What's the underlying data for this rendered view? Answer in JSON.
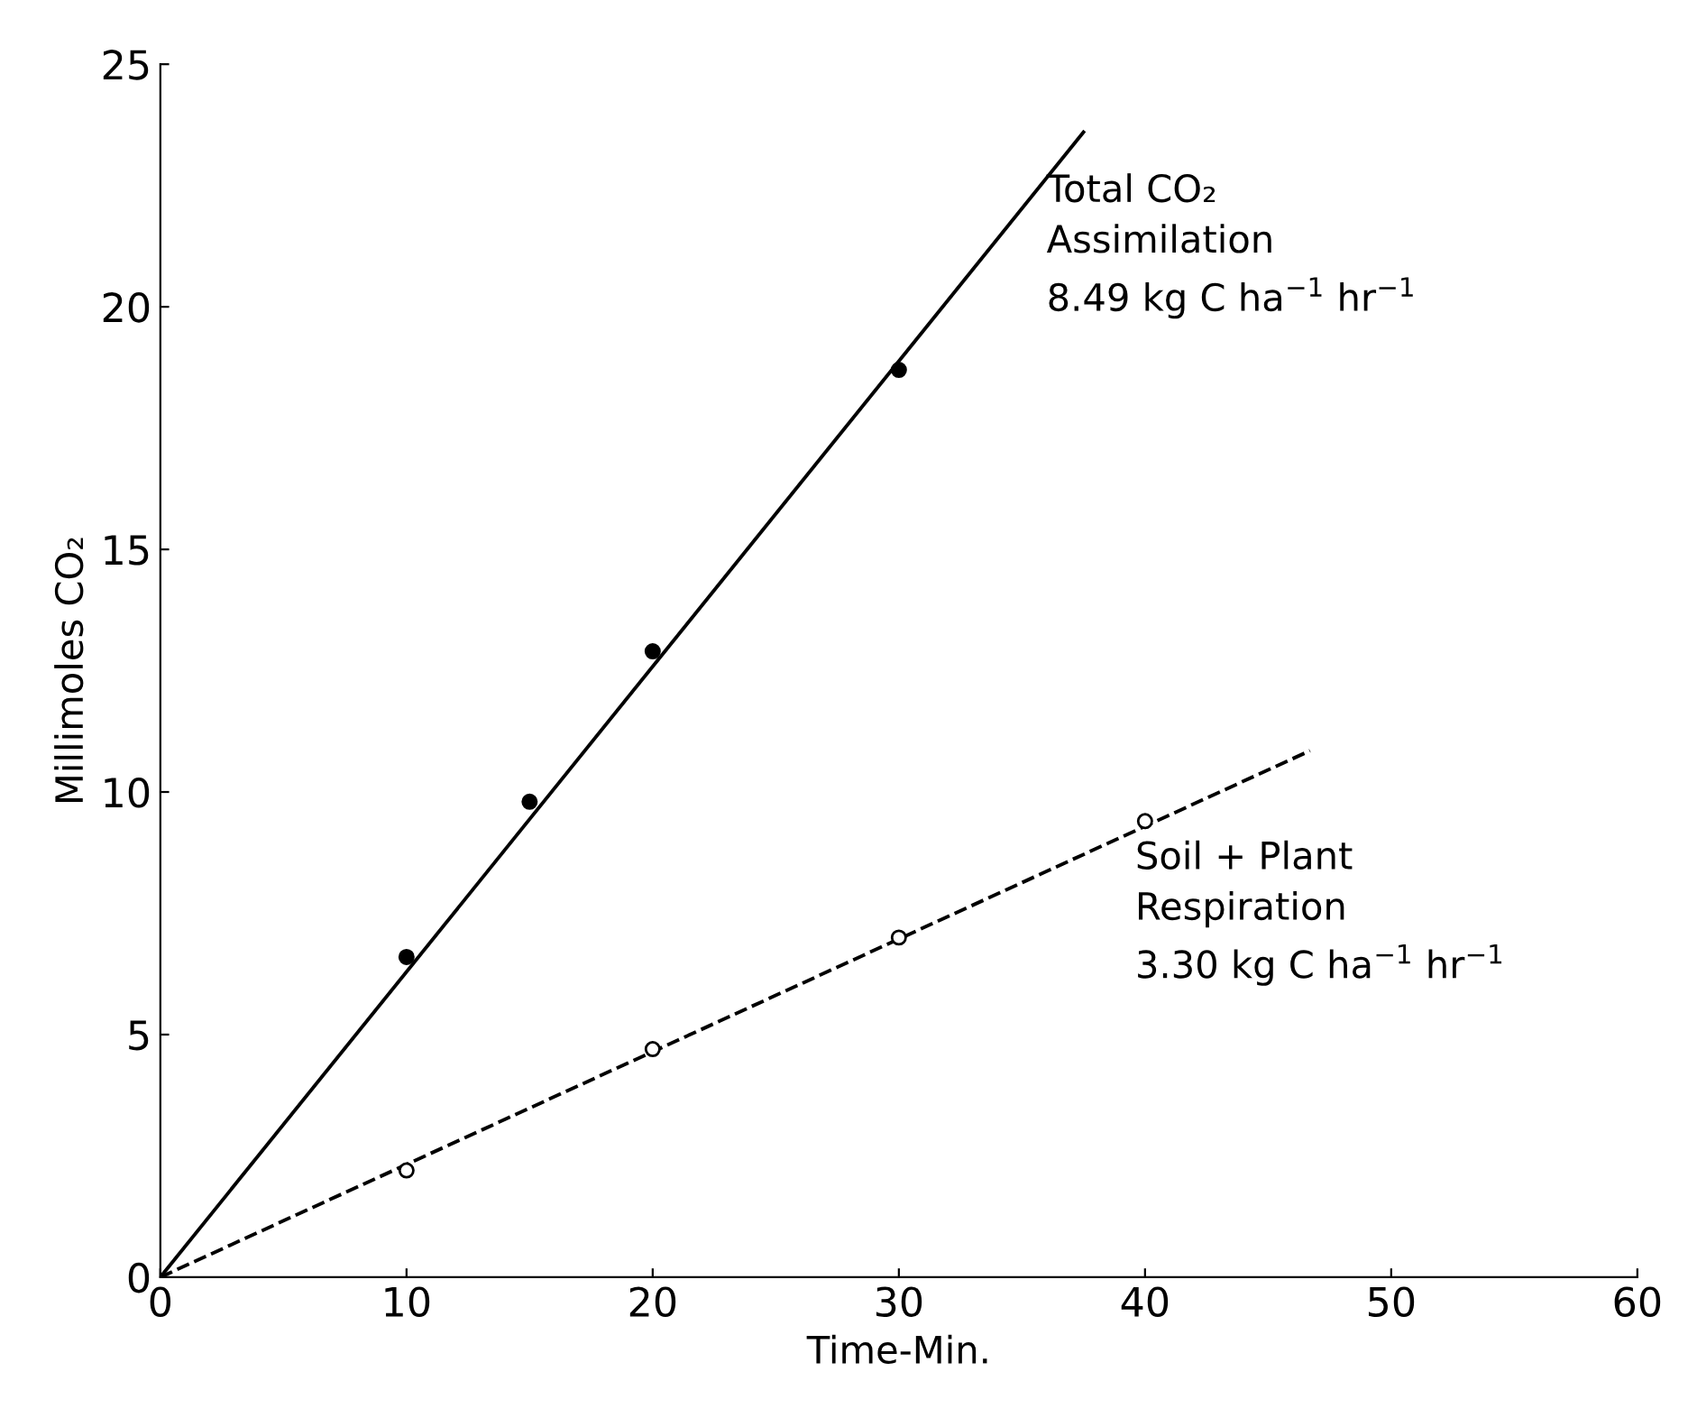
{
  "chart_data": {
    "type": "scatter",
    "xlabel": "Time-Min.",
    "ylabel": "Millimoles CO₂",
    "xlim": [
      0,
      60
    ],
    "ylim": [
      0,
      25
    ],
    "xticks": [
      0,
      10,
      20,
      30,
      40,
      50,
      60
    ],
    "yticks": [
      0,
      5,
      10,
      15,
      20,
      25
    ],
    "grid": false,
    "legend": false,
    "series": [
      {
        "type": "line",
        "color": "#000000",
        "line_style": "solid",
        "marker": "none",
        "x": [
          0,
          37.5
        ],
        "values": [
          0,
          23.6
        ]
      },
      {
        "type": "line",
        "color": "#000000",
        "line_style": "dashed",
        "marker": "none",
        "x": [
          0,
          46.7
        ],
        "values": [
          0,
          10.85
        ]
      },
      {
        "color": "#000000",
        "marker": "circle",
        "x": [
          10,
          15,
          20,
          30
        ],
        "values": [
          6.6,
          9.8,
          12.9,
          18.7
        ]
      },
      {
        "color": "#ffffff",
        "marker": "circle",
        "x": [
          10,
          20,
          30,
          40
        ],
        "values": [
          2.2,
          4.7,
          7.0,
          9.4
        ]
      }
    ],
    "annotations": [
      "Total CO₂\nAssimilation\n8.49 kg C ha$^{−1}$ hr$^{−1}$",
      "Soil + Plant\nRespiration\n3.30 kg C ha$^{−1}$ hr$^{−1}$"
    ]
  }
}
